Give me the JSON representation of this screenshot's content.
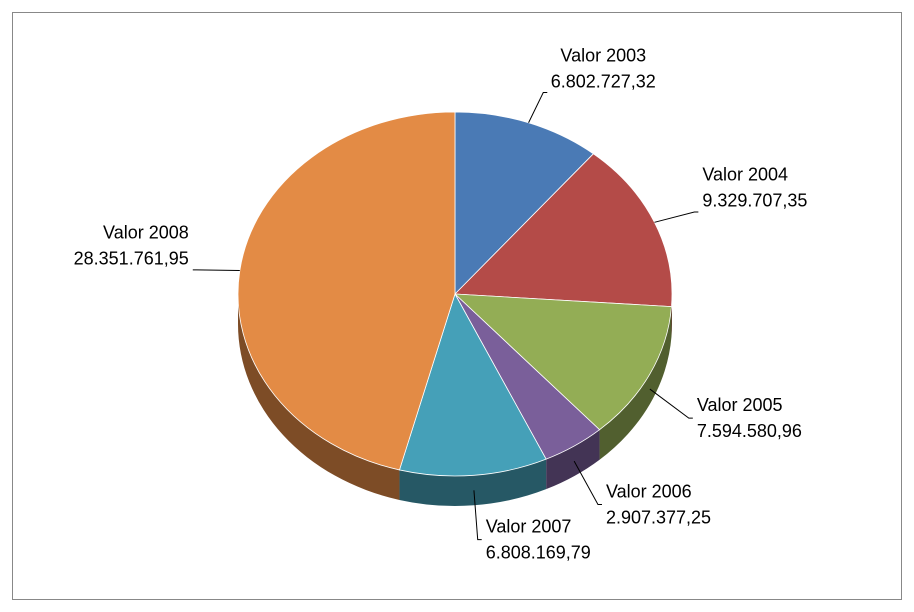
{
  "chart_data": {
    "type": "pie",
    "categories": [
      "Valor 2003",
      "Valor 2004",
      "Valor 2005",
      "Valor 2006",
      "Valor 2007",
      "Valor 2008"
    ],
    "values": [
      6802727.32,
      9329707.35,
      7594580.96,
      2907377.25,
      6808169.79,
      28351761.95
    ],
    "value_labels": [
      "6.802.727,32",
      "9.329.707,35",
      "7.594.580,96",
      "2.907.377,25",
      "6.808.169,79",
      "28.351.761,95"
    ],
    "colors": [
      "#4a7ab5",
      "#b44b48",
      "#93ad55",
      "#7a5f9a",
      "#45a0b8",
      "#e38b45"
    ]
  }
}
